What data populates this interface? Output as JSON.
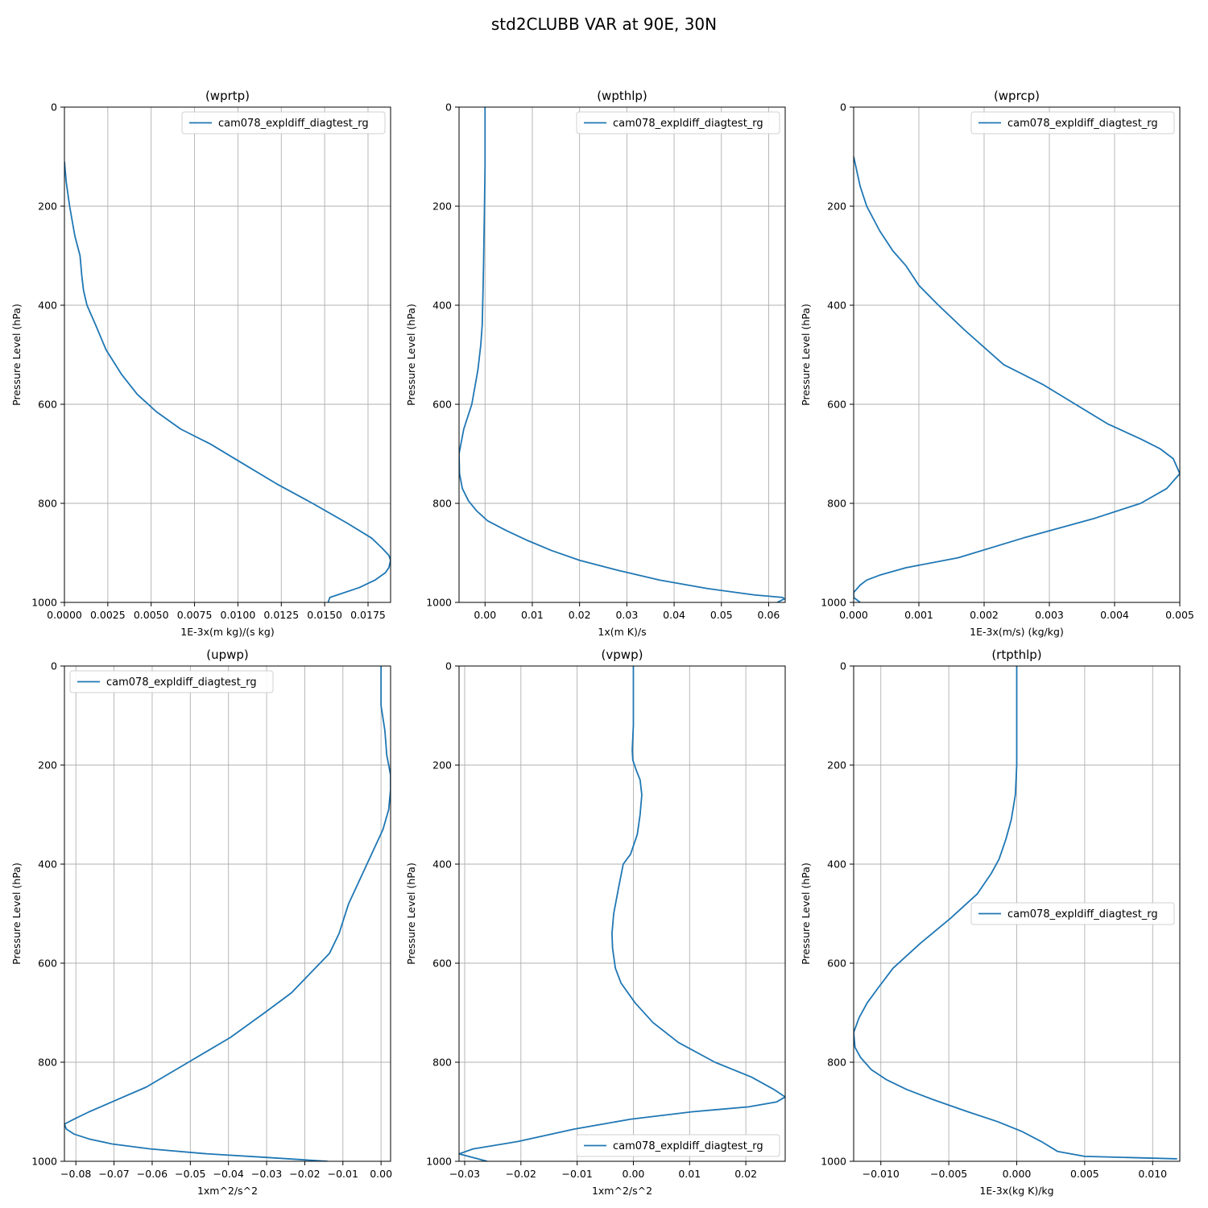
{
  "figure": {
    "title": "std2CLUBB VAR at 90E, 30N",
    "line_color": "#1f77b4"
  },
  "chart_data": [
    {
      "type": "line",
      "title": "(wprtp)",
      "xlabel": "1E-3x(m kg)/(s kg)",
      "ylabel": "Pressure Level (hPa)",
      "xlim": [
        0.0,
        0.0188
      ],
      "ylim": [
        1000,
        0
      ],
      "y_inverted": true,
      "xticks": [
        0.0,
        0.0025,
        0.005,
        0.0075,
        0.01,
        0.0125,
        0.015,
        0.0175
      ],
      "xtick_labels": [
        "0.0000",
        "0.0025",
        "0.0050",
        "0.0075",
        "0.0100",
        "0.0125",
        "0.0150",
        "0.0175"
      ],
      "yticks": [
        0,
        200,
        400,
        600,
        800,
        1000
      ],
      "ytick_labels": [
        "0",
        "200",
        "400",
        "600",
        "800",
        "1000"
      ],
      "grid": true,
      "legend_position": "upper right",
      "series": [
        {
          "name": "cam078_expldiff_diagtest_rg",
          "x": [
            0.0,
            0.0001,
            0.0003,
            0.0006,
            0.0009,
            0.001,
            0.0011,
            0.0013,
            0.0018,
            0.0024,
            0.0033,
            0.0042,
            0.0053,
            0.0067,
            0.0084,
            0.0103,
            0.0122,
            0.0143,
            0.0163,
            0.0177,
            0.0183,
            0.0187,
            0.0188,
            0.0187,
            0.0185,
            0.0179,
            0.017,
            0.0153,
            0.0152
          ],
          "y": [
            110,
            150,
            200,
            260,
            300,
            340,
            370,
            400,
            440,
            490,
            540,
            580,
            615,
            650,
            680,
            720,
            760,
            800,
            840,
            870,
            890,
            905,
            915,
            930,
            940,
            955,
            970,
            990,
            1000
          ]
        }
      ]
    },
    {
      "type": "line",
      "title": "(wpthlp)",
      "xlabel": "1x(m K)/s",
      "ylabel": "Pressure Level (hPa)",
      "xlim": [
        -0.0055,
        0.0635
      ],
      "ylim": [
        1000,
        0
      ],
      "y_inverted": true,
      "xticks": [
        0.0,
        0.01,
        0.02,
        0.03,
        0.04,
        0.05,
        0.06
      ],
      "xtick_labels": [
        "0.00",
        "0.01",
        "0.02",
        "0.03",
        "0.04",
        "0.05",
        "0.06"
      ],
      "yticks": [
        0,
        200,
        400,
        600,
        800,
        1000
      ],
      "ytick_labels": [
        "0",
        "200",
        "400",
        "600",
        "800",
        "1000"
      ],
      "grid": true,
      "legend_position": "upper right",
      "series": [
        {
          "name": "cam078_expldiff_diagtest_rg",
          "x": [
            0.0,
            0.0,
            0.0,
            -0.0001,
            -0.0002,
            -0.0003,
            -0.0004,
            -0.0005,
            -0.0006,
            -0.0009,
            -0.0015,
            -0.0028,
            -0.0045,
            -0.0055,
            -0.0054,
            -0.0048,
            -0.0035,
            -0.0018,
            0.0005,
            0.0045,
            0.009,
            0.014,
            0.02,
            0.028,
            0.037,
            0.047,
            0.057,
            0.063,
            0.0633,
            0.0618
          ],
          "y": [
            0,
            60,
            120,
            190,
            250,
            310,
            360,
            400,
            440,
            480,
            530,
            600,
            650,
            700,
            740,
            770,
            795,
            815,
            835,
            855,
            875,
            895,
            915,
            935,
            955,
            972,
            985,
            990,
            993,
            1000
          ]
        }
      ]
    },
    {
      "type": "line",
      "title": "(wprcp)",
      "xlabel": "1E-3x(m/s) (kg/kg)",
      "ylabel": "Pressure Level (hPa)",
      "xlim": [
        0.0,
        0.005
      ],
      "ylim": [
        1000,
        0
      ],
      "y_inverted": true,
      "xticks": [
        0.0,
        0.001,
        0.002,
        0.003,
        0.004,
        0.005
      ],
      "xtick_labels": [
        "0.000",
        "0.001",
        "0.002",
        "0.003",
        "0.004",
        "0.005"
      ],
      "yticks": [
        0,
        200,
        400,
        600,
        800,
        1000
      ],
      "ytick_labels": [
        "0",
        "200",
        "400",
        "600",
        "800",
        "1000"
      ],
      "grid": true,
      "legend_position": "upper right",
      "series": [
        {
          "name": "cam078_expldiff_diagtest_rg",
          "x": [
            0.0,
            0.0001,
            0.0002,
            0.0004,
            0.0006,
            0.0008,
            0.001,
            0.0013,
            0.0017,
            0.0023,
            0.0029,
            0.0034,
            0.0039,
            0.0044,
            0.0047,
            0.0049,
            0.005,
            0.0048,
            0.0044,
            0.0037,
            0.0026,
            0.0016,
            0.0008,
            0.0004,
            0.0002,
            0.0001,
            0.0,
            0.0,
            0.0001
          ],
          "y": [
            100,
            160,
            200,
            250,
            290,
            320,
            360,
            400,
            450,
            520,
            560,
            600,
            640,
            670,
            690,
            710,
            740,
            770,
            800,
            830,
            870,
            910,
            930,
            945,
            955,
            965,
            980,
            990,
            1000
          ]
        }
      ]
    },
    {
      "type": "line",
      "title": "(upwp)",
      "xlabel": "1xm^2/s^2",
      "ylabel": "Pressure Level (hPa)",
      "xlim": [
        -0.083,
        0.0025
      ],
      "ylim": [
        1000,
        0
      ],
      "y_inverted": true,
      "xticks": [
        -0.08,
        -0.07,
        -0.06,
        -0.05,
        -0.04,
        -0.03,
        -0.02,
        -0.01,
        0.0
      ],
      "xtick_labels": [
        "−0.08",
        "−0.07",
        "−0.06",
        "−0.05",
        "−0.04",
        "−0.03",
        "−0.02",
        "−0.01",
        "0.00"
      ],
      "yticks": [
        0,
        200,
        400,
        600,
        800,
        1000
      ],
      "ytick_labels": [
        "0",
        "200",
        "400",
        "600",
        "800",
        "1000"
      ],
      "grid": true,
      "legend_position": "upper left",
      "series": [
        {
          "name": "cam078_expldiff_diagtest_rg",
          "x": [
            0.0,
            0.0,
            0.0,
            0.001,
            0.0015,
            0.0025,
            0.0025,
            0.002,
            0.0005,
            -0.0025,
            -0.0055,
            -0.0085,
            -0.011,
            -0.0135,
            -0.0185,
            -0.0235,
            -0.0305,
            -0.0395,
            -0.0505,
            -0.0615,
            -0.0705,
            -0.0765,
            -0.0805,
            -0.083,
            -0.0825,
            -0.0805,
            -0.0765,
            -0.0705,
            -0.0605,
            -0.0455,
            -0.0305,
            -0.014
          ],
          "y": [
            0,
            40,
            80,
            130,
            180,
            220,
            250,
            290,
            330,
            380,
            430,
            480,
            540,
            580,
            620,
            660,
            700,
            750,
            800,
            850,
            880,
            900,
            915,
            925,
            935,
            945,
            955,
            965,
            975,
            985,
            992,
            1000
          ]
        }
      ]
    },
    {
      "type": "line",
      "title": "(vpwp)",
      "xlabel": "1xm^2/s^2",
      "ylabel": "Pressure Level (hPa)",
      "xlim": [
        -0.031,
        0.027
      ],
      "ylim": [
        1000,
        0
      ],
      "y_inverted": true,
      "xticks": [
        -0.03,
        -0.02,
        -0.01,
        0.0,
        0.01,
        0.02
      ],
      "xtick_labels": [
        "−0.03",
        "−0.02",
        "−0.01",
        "0.00",
        "0.01",
        "0.02"
      ],
      "yticks": [
        0,
        200,
        400,
        600,
        800,
        1000
      ],
      "ytick_labels": [
        "0",
        "200",
        "400",
        "600",
        "800",
        "1000"
      ],
      "grid": true,
      "legend_position": "lower right",
      "series": [
        {
          "name": "cam078_expldiff_diagtest_rg",
          "x": [
            0.0,
            0.0,
            0.0,
            -0.0002,
            -0.0001,
            0.0005,
            0.0012,
            0.0015,
            0.0012,
            0.0007,
            -0.0005,
            -0.0018,
            -0.0025,
            -0.0035,
            -0.0038,
            -0.0037,
            -0.0032,
            -0.0022,
            0.0003,
            0.0035,
            0.008,
            0.0145,
            0.021,
            0.025,
            0.027,
            0.0255,
            0.0205,
            0.0105,
            -0.0005,
            -0.0105,
            -0.0205,
            -0.0285,
            -0.031,
            -0.026
          ],
          "y": [
            0,
            50,
            120,
            170,
            190,
            210,
            230,
            260,
            300,
            340,
            380,
            400,
            440,
            500,
            540,
            570,
            610,
            640,
            680,
            720,
            760,
            800,
            830,
            855,
            870,
            880,
            890,
            900,
            915,
            935,
            960,
            975,
            985,
            1000
          ]
        }
      ]
    },
    {
      "type": "line",
      "title": "(rtpthlp)",
      "xlabel": "1E-3x(kg K)/kg",
      "ylabel": "Pressure Level (hPa)",
      "xlim": [
        -0.012,
        0.012
      ],
      "ylim": [
        1000,
        0
      ],
      "y_inverted": true,
      "xticks": [
        -0.01,
        -0.005,
        0.0,
        0.005,
        0.01
      ],
      "xtick_labels": [
        "−0.010",
        "−0.005",
        "0.000",
        "0.005",
        "0.010"
      ],
      "yticks": [
        0,
        200,
        400,
        600,
        800,
        1000
      ],
      "ytick_labels": [
        "0",
        "200",
        "400",
        "600",
        "800",
        "1000"
      ],
      "grid": true,
      "legend_position": "center right",
      "series": [
        {
          "name": "cam078_expldiff_diagtest_rg",
          "x": [
            0.0,
            0.0,
            0.0,
            -0.0001,
            -0.0004,
            -0.0008,
            -0.0013,
            -0.0019,
            -0.0029,
            -0.0049,
            -0.0071,
            -0.0091,
            -0.0102,
            -0.011,
            -0.0116,
            -0.012,
            -0.0119,
            -0.0115,
            -0.0107,
            -0.0096,
            -0.0081,
            -0.0062,
            -0.0036,
            -0.0014,
            0.0004,
            0.0018,
            0.003,
            0.005,
            0.0118
          ],
          "y": [
            0,
            120,
            200,
            260,
            310,
            350,
            390,
            420,
            460,
            510,
            560,
            610,
            650,
            680,
            710,
            740,
            770,
            790,
            815,
            835,
            855,
            875,
            900,
            920,
            940,
            960,
            980,
            990,
            995
          ]
        }
      ]
    }
  ]
}
